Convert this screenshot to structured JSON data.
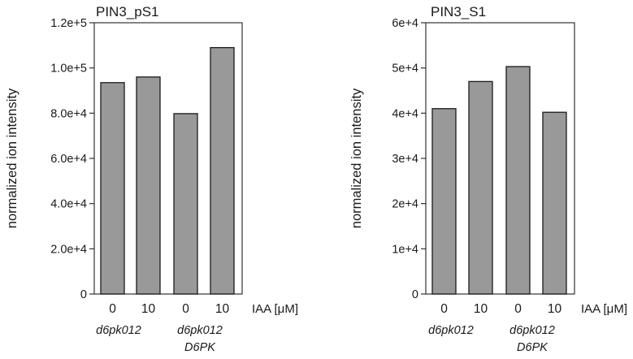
{
  "chart_data": [
    {
      "type": "bar",
      "title": "PIN3_pS1",
      "ylabel": "normalized ion intensity",
      "xlabel": "IAA [μM]",
      "categories": [
        "0",
        "10",
        "0",
        "10"
      ],
      "groups": [
        {
          "lines": [
            "d6pk012"
          ]
        },
        {
          "lines": [
            "d6pk012",
            "D6PK"
          ]
        }
      ],
      "values": [
        93500,
        96000,
        79800,
        109000
      ],
      "ylim": [
        0,
        120000
      ],
      "yticks": [
        {
          "value": 0,
          "label": "0"
        },
        {
          "value": 20000,
          "label": "2.0e+4"
        },
        {
          "value": 40000,
          "label": "4.0e+4"
        },
        {
          "value": 60000,
          "label": "6.0e+4"
        },
        {
          "value": 80000,
          "label": "8.0e+4"
        },
        {
          "value": 100000,
          "label": "1.0e+5"
        },
        {
          "value": 120000,
          "label": "1.2e+5"
        }
      ],
      "bar_color": "#999999",
      "grid": false
    },
    {
      "type": "bar",
      "title": "PIN3_S1",
      "ylabel": "normalized ion intensity",
      "xlabel": "IAA [μM]",
      "categories": [
        "0",
        "10",
        "0",
        "10"
      ],
      "groups": [
        {
          "lines": [
            "d6pk012"
          ]
        },
        {
          "lines": [
            "d6pk012",
            "D6PK"
          ]
        }
      ],
      "values": [
        41000,
        47000,
        50300,
        40200
      ],
      "ylim": [
        0,
        60000
      ],
      "yticks": [
        {
          "value": 0,
          "label": "0"
        },
        {
          "value": 10000,
          "label": "1e+4"
        },
        {
          "value": 20000,
          "label": "2e+4"
        },
        {
          "value": 30000,
          "label": "3e+4"
        },
        {
          "value": 40000,
          "label": "4e+4"
        },
        {
          "value": 50000,
          "label": "5e+4"
        },
        {
          "value": 60000,
          "label": "6e+4"
        }
      ],
      "bar_color": "#999999",
      "grid": false
    }
  ]
}
